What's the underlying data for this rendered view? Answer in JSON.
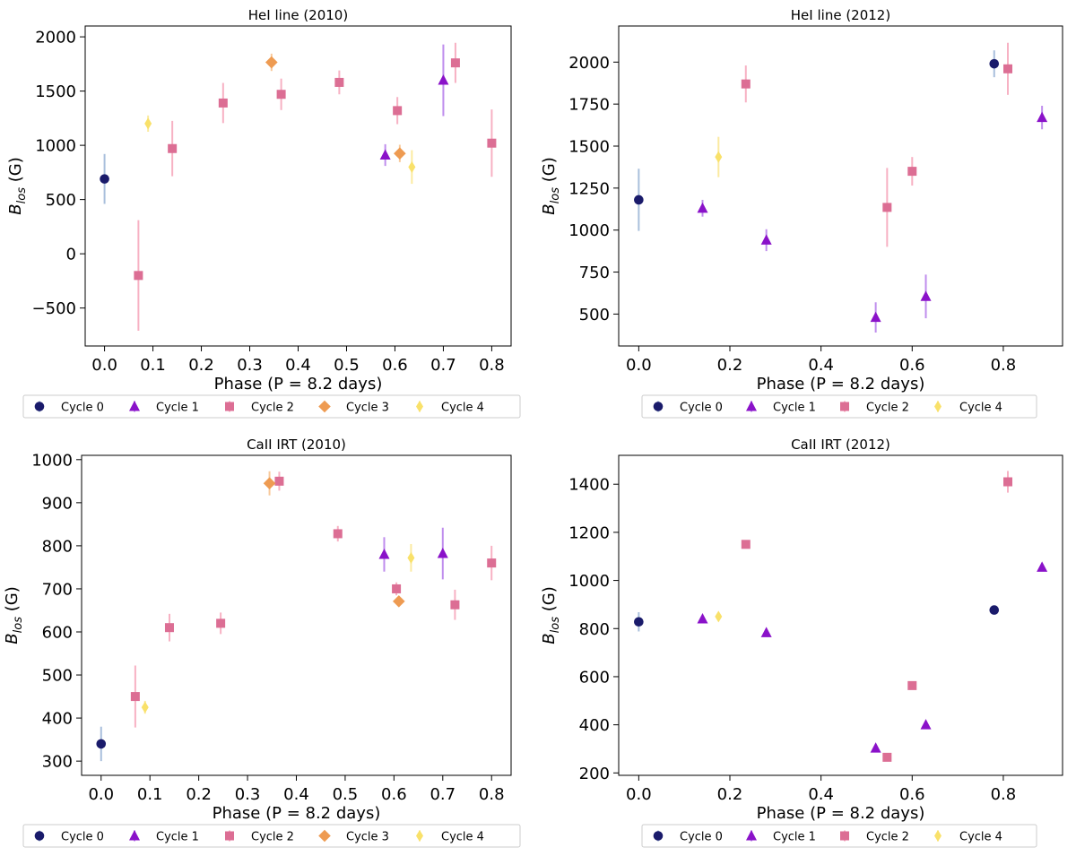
{
  "chart_data": [
    {
      "type": "scatter",
      "title": "HeI line (2010)",
      "xlabel": "Phase (P = 8.2 days)",
      "ylabel": "B",
      "ylabel_sub": "los",
      "ylabel_unit": "(G)",
      "xlim": [
        -0.04,
        0.84
      ],
      "ylim": [
        -850,
        2100
      ],
      "xticks": [
        0.0,
        0.1,
        0.2,
        0.3,
        0.4,
        0.5,
        0.6,
        0.7,
        0.8
      ],
      "xtick_labels": [
        "0.0",
        "0.1",
        "0.2",
        "0.3",
        "0.4",
        "0.5",
        "0.6",
        "0.7",
        "0.8"
      ],
      "yticks": [
        -500,
        0,
        500,
        1000,
        1500,
        2000
      ],
      "ytick_labels": [
        "−500",
        "0",
        "500",
        "1000",
        "1500",
        "2000"
      ],
      "series": [
        {
          "name": "Cycle 0",
          "marker": "circle",
          "color": "#1a1b6b",
          "err_color": "#a9bfdc",
          "points": [
            {
              "x": 0.0,
              "y": 690,
              "err": 230
            }
          ]
        },
        {
          "name": "Cycle 1",
          "marker": "triangle",
          "color": "#8a12c9",
          "err_color": "#bf8ded",
          "points": [
            {
              "x": 0.58,
              "y": 910,
              "err": 100
            },
            {
              "x": 0.7,
              "y": 1600,
              "err": 330
            }
          ]
        },
        {
          "name": "Cycle 2",
          "marker": "square",
          "color": "#dc6e94",
          "err_color": "#f7b1c3",
          "points": [
            {
              "x": 0.07,
              "y": -200,
              "err": 510
            },
            {
              "x": 0.14,
              "y": 970,
              "err": 255
            },
            {
              "x": 0.245,
              "y": 1390,
              "err": 185
            },
            {
              "x": 0.365,
              "y": 1470,
              "err": 145
            },
            {
              "x": 0.485,
              "y": 1580,
              "err": 110
            },
            {
              "x": 0.605,
              "y": 1320,
              "err": 125
            },
            {
              "x": 0.725,
              "y": 1760,
              "err": 185
            },
            {
              "x": 0.8,
              "y": 1020,
              "err": 310
            }
          ]
        },
        {
          "name": "Cycle 3",
          "marker": "diamond",
          "color": "#ee9b52",
          "err_color": "#f8c99a",
          "points": [
            {
              "x": 0.345,
              "y": 1765,
              "err": 80
            },
            {
              "x": 0.61,
              "y": 925,
              "err": 80
            }
          ]
        },
        {
          "name": "Cycle 4",
          "marker": "thin_diamond",
          "color": "#f9e16a",
          "err_color": "#fbeaa0",
          "points": [
            {
              "x": 0.09,
              "y": 1200,
              "err": 75
            },
            {
              "x": 0.635,
              "y": 800,
              "err": 155
            }
          ]
        }
      ]
    },
    {
      "type": "scatter",
      "title": "HeI line (2012)",
      "xlabel": "Phase (P = 8.2 days)",
      "ylabel": "B",
      "ylabel_sub": "los",
      "ylabel_unit": "(G)",
      "xlim": [
        -0.044,
        0.93
      ],
      "ylim": [
        310,
        2215
      ],
      "xticks": [
        0.0,
        0.2,
        0.4,
        0.6,
        0.8
      ],
      "xtick_labels": [
        "0.0",
        "0.2",
        "0.4",
        "0.6",
        "0.8"
      ],
      "yticks": [
        500,
        750,
        1000,
        1250,
        1500,
        1750,
        2000
      ],
      "ytick_labels": [
        "500",
        "750",
        "1000",
        "1250",
        "1500",
        "1750",
        "2000"
      ],
      "series": [
        {
          "name": "Cycle 0",
          "marker": "circle",
          "color": "#1a1b6b",
          "err_color": "#a9bfdc",
          "points": [
            {
              "x": 0.0,
              "y": 1180,
              "err": 185
            },
            {
              "x": 0.78,
              "y": 1990,
              "err": 80
            }
          ]
        },
        {
          "name": "Cycle 1",
          "marker": "triangle",
          "color": "#8a12c9",
          "err_color": "#bf8ded",
          "points": [
            {
              "x": 0.14,
              "y": 1130,
              "err": 50
            },
            {
              "x": 0.28,
              "y": 940,
              "err": 65
            },
            {
              "x": 0.52,
              "y": 480,
              "err": 90
            },
            {
              "x": 0.63,
              "y": 605,
              "err": 130
            },
            {
              "x": 0.885,
              "y": 1670,
              "err": 70
            }
          ]
        },
        {
          "name": "Cycle 2",
          "marker": "square",
          "color": "#dc6e94",
          "err_color": "#f7b1c3",
          "points": [
            {
              "x": 0.235,
              "y": 1870,
              "err": 110
            },
            {
              "x": 0.545,
              "y": 1135,
              "err": 235
            },
            {
              "x": 0.6,
              "y": 1350,
              "err": 85
            },
            {
              "x": 0.81,
              "y": 1960,
              "err": 155
            }
          ]
        },
        {
          "name": "Cycle 4",
          "marker": "thin_diamond",
          "color": "#f9e16a",
          "err_color": "#fbeaa0",
          "points": [
            {
              "x": 0.175,
              "y": 1435,
              "err": 120
            }
          ]
        }
      ]
    },
    {
      "type": "scatter",
      "title": "CaII IRT (2010)",
      "xlabel": "Phase (P = 8.2 days)",
      "ylabel": "B",
      "ylabel_sub": "los",
      "ylabel_unit": "(G)",
      "xlim": [
        -0.04,
        0.84
      ],
      "ylim": [
        267,
        1010
      ],
      "xticks": [
        0.0,
        0.1,
        0.2,
        0.3,
        0.4,
        0.5,
        0.6,
        0.7,
        0.8
      ],
      "xtick_labels": [
        "0.0",
        "0.1",
        "0.2",
        "0.3",
        "0.4",
        "0.5",
        "0.6",
        "0.7",
        "0.8"
      ],
      "yticks": [
        300,
        400,
        500,
        600,
        700,
        800,
        900,
        1000
      ],
      "ytick_labels": [
        "300",
        "400",
        "500",
        "600",
        "700",
        "800",
        "900",
        "1000"
      ],
      "series": [
        {
          "name": "Cycle 0",
          "marker": "circle",
          "color": "#1a1b6b",
          "err_color": "#a9bfdc",
          "points": [
            {
              "x": 0.0,
              "y": 340,
              "err": 40
            }
          ]
        },
        {
          "name": "Cycle 1",
          "marker": "triangle",
          "color": "#8a12c9",
          "err_color": "#bf8ded",
          "points": [
            {
              "x": 0.58,
              "y": 780,
              "err": 40
            },
            {
              "x": 0.7,
              "y": 782,
              "err": 60
            }
          ]
        },
        {
          "name": "Cycle 2",
          "marker": "square",
          "color": "#dc6e94",
          "err_color": "#f7b1c3",
          "points": [
            {
              "x": 0.07,
              "y": 450,
              "err": 72
            },
            {
              "x": 0.14,
              "y": 610,
              "err": 32
            },
            {
              "x": 0.245,
              "y": 620,
              "err": 25
            },
            {
              "x": 0.365,
              "y": 950,
              "err": 22
            },
            {
              "x": 0.485,
              "y": 828,
              "err": 18
            },
            {
              "x": 0.605,
              "y": 700,
              "err": 15
            },
            {
              "x": 0.725,
              "y": 663,
              "err": 35
            },
            {
              "x": 0.8,
              "y": 760,
              "err": 40
            }
          ]
        },
        {
          "name": "Cycle 3",
          "marker": "diamond",
          "color": "#ee9b52",
          "err_color": "#f8c99a",
          "points": [
            {
              "x": 0.345,
              "y": 945,
              "err": 28
            },
            {
              "x": 0.61,
              "y": 671,
              "err": 12
            }
          ]
        },
        {
          "name": "Cycle 4",
          "marker": "thin_diamond",
          "color": "#f9e16a",
          "err_color": "#fbeaa0",
          "points": [
            {
              "x": 0.09,
              "y": 425,
              "err": 15
            },
            {
              "x": 0.635,
              "y": 772,
              "err": 32
            }
          ]
        }
      ]
    },
    {
      "type": "scatter",
      "title": "CaII IRT (2012)",
      "xlabel": "Phase (P = 8.2 days)",
      "ylabel": "B",
      "ylabel_sub": "los",
      "ylabel_unit": "(G)",
      "xlim": [
        -0.044,
        0.93
      ],
      "ylim": [
        190,
        1520
      ],
      "xticks": [
        0.0,
        0.2,
        0.4,
        0.6,
        0.8
      ],
      "xtick_labels": [
        "0.0",
        "0.2",
        "0.4",
        "0.6",
        "0.8"
      ],
      "yticks": [
        200,
        400,
        600,
        800,
        1000,
        1200,
        1400
      ],
      "ytick_labels": [
        "200",
        "400",
        "600",
        "800",
        "1000",
        "1200",
        "1400"
      ],
      "series": [
        {
          "name": "Cycle 0",
          "marker": "circle",
          "color": "#1a1b6b",
          "err_color": "#a9bfdc",
          "points": [
            {
              "x": 0.0,
              "y": 828,
              "err": 40
            },
            {
              "x": 0.78,
              "y": 877,
              "err": 10
            }
          ]
        },
        {
          "name": "Cycle 1",
          "marker": "triangle",
          "color": "#8a12c9",
          "err_color": "#bf8ded",
          "points": [
            {
              "x": 0.14,
              "y": 840,
              "err": 10
            },
            {
              "x": 0.28,
              "y": 783,
              "err": 10
            },
            {
              "x": 0.52,
              "y": 303,
              "err": 10
            },
            {
              "x": 0.63,
              "y": 400,
              "err": 10
            },
            {
              "x": 0.885,
              "y": 1055,
              "err": 10
            }
          ]
        },
        {
          "name": "Cycle 2",
          "marker": "square",
          "color": "#dc6e94",
          "err_color": "#f7b1c3",
          "points": [
            {
              "x": 0.235,
              "y": 1150,
              "err": 12
            },
            {
              "x": 0.545,
              "y": 265,
              "err": 12
            },
            {
              "x": 0.6,
              "y": 563,
              "err": 10
            },
            {
              "x": 0.81,
              "y": 1410,
              "err": 45
            }
          ]
        },
        {
          "name": "Cycle 4",
          "marker": "thin_diamond",
          "color": "#f9e16a",
          "err_color": "#fbeaa0",
          "points": [
            {
              "x": 0.175,
              "y": 850,
              "err": 15
            }
          ]
        }
      ]
    }
  ],
  "legend": {
    "entries": [
      {
        "label": "Cycle 0",
        "marker": "circle",
        "color": "#1a1b6b",
        "err_color": "#a9bfdc"
      },
      {
        "label": "Cycle 1",
        "marker": "triangle",
        "color": "#8a12c9",
        "err_color": "#bf8ded"
      },
      {
        "label": "Cycle 2",
        "marker": "square",
        "color": "#dc6e94",
        "err_color": "#f7b1c3"
      },
      {
        "label": "Cycle 3",
        "marker": "diamond",
        "color": "#ee9b52",
        "err_color": "#f8c99a"
      },
      {
        "label": "Cycle 4",
        "marker": "thin_diamond",
        "color": "#f9e16a",
        "err_color": "#fbeaa0"
      }
    ]
  }
}
